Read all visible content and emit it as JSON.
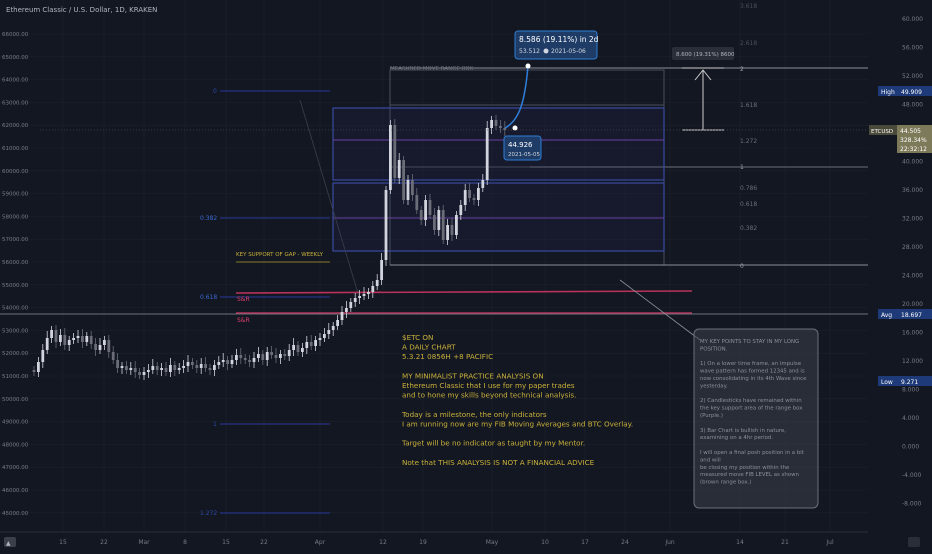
{
  "header": {
    "symbol_title": "Ethereum Classic / U.S. Dollar, 1D, KRAKEN"
  },
  "left_axis": {
    "labels": [
      "66000.00",
      "65000.00",
      "64000.00",
      "63000.00",
      "62000.00",
      "61000.00",
      "60000.00",
      "59000.00",
      "58000.00",
      "57000.00",
      "56000.00",
      "55000.00",
      "54000.00",
      "53000.00",
      "52000.00",
      "51000.00",
      "50000.00",
      "49000.00",
      "48000.00",
      "47000.00",
      "46000.00",
      "45000.00"
    ]
  },
  "right_axis": {
    "labels": [
      "60.000",
      "56.000",
      "52.000",
      "48.000",
      "44.000",
      "40.000",
      "36.000",
      "32.000",
      "28.000",
      "24.000",
      "20.000",
      "16.000",
      "12.000",
      "8.000",
      "4.000",
      "0.000",
      "-4.000",
      "-8.000"
    ]
  },
  "x_axis": {
    "labels": [
      "15",
      "22",
      "Mar",
      "8",
      "15",
      "22",
      "Apr",
      "12",
      "19",
      "May",
      "10",
      "17",
      "24",
      "Jun",
      "14",
      "21",
      "Jul"
    ]
  },
  "price_tags": {
    "high": {
      "label": "High",
      "value": "49.909"
    },
    "current": {
      "symbol": "ETCUSD",
      "price": "44.505",
      "change": "328.34%",
      "countdown": "22:32:12"
    },
    "avg": {
      "label": "Avg",
      "value": "18.697"
    },
    "low": {
      "label": "Low",
      "value": "9.271"
    }
  },
  "fib_left": [
    "0",
    "0.382",
    "0.618",
    "1",
    "1.272"
  ],
  "fib_right": [
    "1.618",
    "1.272",
    "1",
    "0.786",
    "0.618",
    "0.382",
    "0",
    "2",
    "2.618",
    "3.618"
  ],
  "annotations": {
    "measured_move": "MEASURED MOVE RANGE BOX",
    "key_support": "KEY SUPPORT OF GAP - WEEKLY",
    "sr1": "S&R",
    "sr2": "S&R"
  },
  "tooltip_move": {
    "line1": "8.586 (19.11%) in 2d",
    "line2": "53.512",
    "line2_date": "2021-05-06"
  },
  "tooltip_point": {
    "value": "44.926",
    "date": "2021-05-05"
  },
  "range_label": "8.600 (19.31%) 8600",
  "analysis": {
    "lines": [
      "$ETC ON",
      "A DAILY CHART",
      "5.3.21 0856H  +8 PACIFIC",
      "",
      "MY MINIMALIST PRACTICE ANALYSIS ON",
      "Ethereum Classic that I use for my paper trades",
      "and to hone my skills beyond technical analysis.",
      "",
      "Today is a milestone, the only indicators",
      "I am running now are my FIB Moving Averages and BTC Overlay.",
      "",
      "Target will be no indicator as taught by my Mentor.",
      "",
      "Note that THIS ANALYSIS IS NOT A FINANCIAL ADVICE"
    ]
  },
  "key_points": {
    "lines": [
      "MY KEY POINTS TO STAY IN MY LONG",
      "POSITION.",
      "",
      "1) On a lower time frame, an impulse",
      "wave pattern has formed 12345 and is",
      "now consolidating in its 4th Wave since",
      "yesterday.",
      "",
      "2) Candlesticks have remained within",
      "the key support area of the range box",
      "(Purple.)",
      "",
      "3) Bar Chart is bullish in nature,",
      "examining on a 4hr period.",
      "",
      "I will  open a final posh position in a bit",
      "and will",
      "be closing my position within the",
      "measured move FIB LEVEL as shown",
      "(brown range box.)"
    ]
  },
  "colors": {
    "bg": "#131722",
    "price_tag": "#7d7a5a",
    "blue_tag": "#1e3a78",
    "text_yellow": "#c9b13a",
    "sr_red": "#e0416e"
  }
}
